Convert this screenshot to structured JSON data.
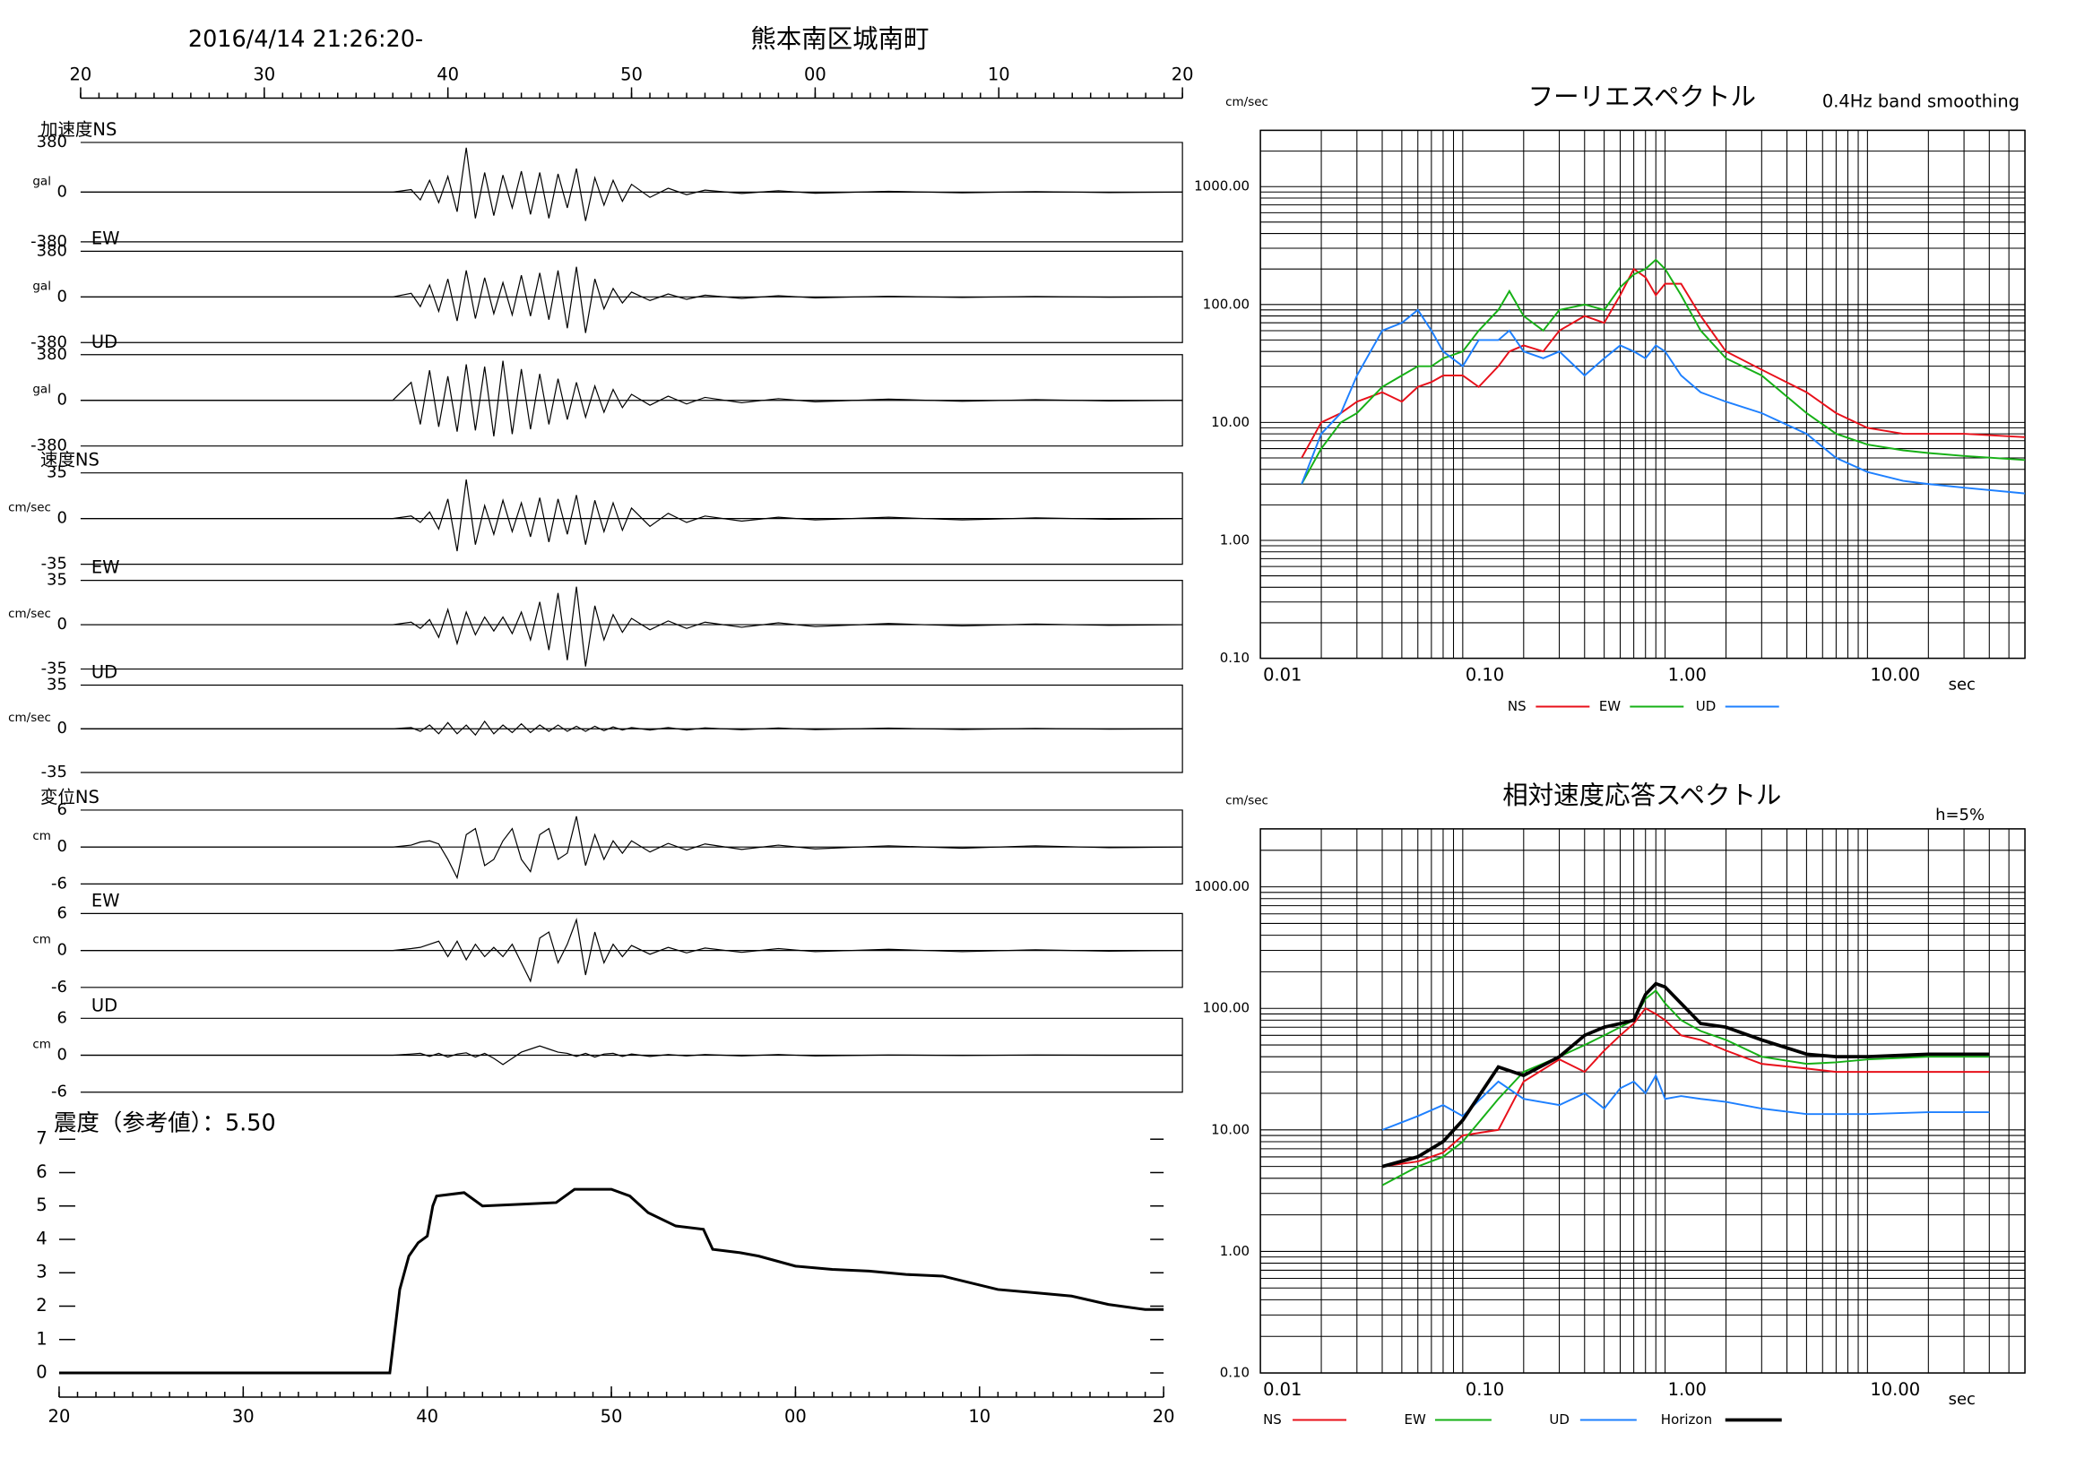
{
  "header": {
    "datetime": "2016/4/14 21:26:20-",
    "station": "熊本南区城南町"
  },
  "chart_data": [
    {
      "type": "waveform",
      "xlim": [
        0,
        60
      ],
      "xticks": [
        {
          "value": 0,
          "label": "20"
        },
        {
          "value": 10,
          "label": "30"
        },
        {
          "value": 20,
          "label": "40"
        },
        {
          "value": 30,
          "label": "50"
        },
        {
          "value": 40,
          "label": "00"
        },
        {
          "value": 50,
          "label": "10"
        },
        {
          "value": 60,
          "label": "20"
        }
      ],
      "x": [
        0,
        17,
        18,
        18.5,
        19,
        19.5,
        20,
        20.5,
        21,
        21.5,
        22,
        22.5,
        23,
        23.5,
        24,
        24.5,
        25,
        25.5,
        26,
        26.5,
        27,
        27.5,
        28,
        28.5,
        29,
        29.5,
        30,
        31,
        32,
        33,
        34,
        36,
        38,
        40,
        44,
        48,
        52,
        56,
        60
      ],
      "panels": [
        {
          "name": "加速度NS",
          "unit": "gal",
          "ylim": [
            -380,
            380
          ],
          "yticks": [
            380,
            0,
            -380
          ],
          "values": [
            0,
            0,
            20,
            -60,
            90,
            -80,
            120,
            -150,
            340,
            -200,
            150,
            -180,
            130,
            -120,
            160,
            -170,
            150,
            -200,
            140,
            -120,
            180,
            -220,
            110,
            -100,
            90,
            -70,
            60,
            -40,
            30,
            -20,
            15,
            -10,
            10,
            -8,
            6,
            -5,
            4,
            -3,
            0
          ]
        },
        {
          "name": "EW",
          "unit": "gal",
          "ylim": [
            -380,
            380
          ],
          "yticks": [
            380,
            0,
            -380
          ],
          "values": [
            0,
            0,
            30,
            -80,
            100,
            -120,
            150,
            -200,
            220,
            -180,
            160,
            -140,
            120,
            -150,
            180,
            -160,
            200,
            -190,
            220,
            -260,
            250,
            -300,
            150,
            -100,
            70,
            -50,
            40,
            -30,
            25,
            -20,
            15,
            -12,
            10,
            -8,
            6,
            -5,
            3,
            -2,
            0
          ]
        },
        {
          "name": "UD",
          "unit": "gal",
          "ylim": [
            -380,
            380
          ],
          "yticks": [
            380,
            0,
            -380
          ],
          "values": [
            0,
            0,
            150,
            -200,
            250,
            -220,
            200,
            -260,
            300,
            -250,
            280,
            -300,
            330,
            -280,
            260,
            -240,
            220,
            -200,
            180,
            -160,
            150,
            -140,
            120,
            -100,
            90,
            -60,
            50,
            -40,
            35,
            -30,
            25,
            -20,
            15,
            -12,
            10,
            -8,
            6,
            -4,
            0
          ]
        },
        {
          "name": "速度NS",
          "unit": "cm/sec",
          "ylim": [
            -35,
            35
          ],
          "yticks": [
            35,
            0,
            -35
          ],
          "values": [
            0,
            0,
            2,
            -3,
            5,
            -8,
            15,
            -25,
            30,
            -20,
            10,
            -12,
            14,
            -10,
            12,
            -14,
            16,
            -18,
            15,
            -12,
            18,
            -20,
            14,
            -10,
            12,
            -9,
            8,
            -6,
            4,
            -3,
            2,
            -2,
            1,
            -1,
            1,
            -1,
            0.5,
            -0.5,
            0
          ]
        },
        {
          "name": "EW",
          "unit": "cm/sec",
          "ylim": [
            -35,
            35
          ],
          "yticks": [
            35,
            0,
            -35
          ],
          "values": [
            0,
            0,
            2,
            -3,
            4,
            -10,
            12,
            -15,
            10,
            -8,
            6,
            -5,
            6,
            -7,
            10,
            -12,
            18,
            -20,
            25,
            -28,
            30,
            -33,
            15,
            -12,
            8,
            -6,
            5,
            -4,
            3,
            -3,
            2,
            -2,
            1.5,
            -1.5,
            1,
            -1,
            0.5,
            -0.5,
            0
          ]
        },
        {
          "name": "UD",
          "unit": "cm/sec",
          "ylim": [
            -35,
            35
          ],
          "yticks": [
            35,
            0,
            -35
          ],
          "values": [
            0,
            0,
            1,
            -2,
            3,
            -4,
            5,
            -4,
            3,
            -5,
            6,
            -4,
            3,
            -3,
            4,
            -3,
            3,
            -2,
            3,
            -2,
            2,
            -2,
            2,
            -1.5,
            1.5,
            -1,
            1,
            -1,
            1,
            -1,
            0.8,
            -0.8,
            0.6,
            -0.6,
            0.5,
            -0.5,
            0.3,
            -0.3,
            0
          ]
        },
        {
          "name": "変位NS",
          "unit": "cm",
          "ylim": [
            -6,
            6
          ],
          "yticks": [
            6,
            0,
            -6
          ],
          "values": [
            0,
            0,
            0.3,
            0.8,
            1,
            0.5,
            -2,
            -5,
            2,
            3,
            -3,
            -2,
            1,
            3,
            -2,
            -4,
            2,
            3,
            -2,
            -1,
            5,
            -3,
            2,
            -2,
            1,
            -1,
            1,
            -0.8,
            0.6,
            -0.5,
            0.5,
            -0.4,
            0.3,
            -0.3,
            0.2,
            -0.2,
            0.2,
            -0.1,
            0
          ]
        },
        {
          "name": "EW",
          "unit": "cm",
          "ylim": [
            -6,
            6
          ],
          "yticks": [
            6,
            0,
            -6
          ],
          "values": [
            0,
            0,
            0.3,
            0.5,
            1,
            1.5,
            -1,
            1.5,
            -1.5,
            1,
            -1,
            0.5,
            -1,
            1,
            -2,
            -5,
            2,
            3,
            -2,
            1,
            5,
            -4,
            3,
            -2,
            1,
            -1,
            0.8,
            -0.6,
            0.5,
            -0.4,
            0.4,
            -0.3,
            0.3,
            -0.2,
            0.2,
            -0.2,
            0.1,
            -0.1,
            0
          ]
        },
        {
          "name": "UD",
          "unit": "cm",
          "ylim": [
            -6,
            6
          ],
          "yticks": [
            6,
            0,
            -6
          ],
          "values": [
            0,
            0,
            0.2,
            0.3,
            -0.2,
            0.3,
            -0.3,
            0.2,
            0.4,
            -0.3,
            0.3,
            -0.5,
            -1.5,
            -0.5,
            0.5,
            1,
            1.5,
            1,
            0.5,
            0.3,
            -0.2,
            0.3,
            -0.3,
            0.2,
            0.3,
            -0.2,
            0.2,
            -0.2,
            0.1,
            -0.1,
            0.1,
            -0.1,
            0.1,
            -0.1,
            0.05,
            -0.05,
            0.05,
            0,
            0
          ]
        }
      ]
    },
    {
      "type": "line",
      "title": "震度（参考値）：5.50",
      "color": "#000000",
      "xlim": [
        0,
        60
      ],
      "xticks": [
        {
          "value": 0,
          "label": "20"
        },
        {
          "value": 10,
          "label": "30"
        },
        {
          "value": 20,
          "label": "40"
        },
        {
          "value": 30,
          "label": "50"
        },
        {
          "value": 40,
          "label": "00"
        },
        {
          "value": 50,
          "label": "10"
        },
        {
          "value": 60,
          "label": "20"
        }
      ],
      "ylim": [
        0,
        7
      ],
      "yticks": [
        0,
        1,
        2,
        3,
        4,
        5,
        6,
        7
      ],
      "x": [
        0,
        17.96,
        18.5,
        19,
        19.5,
        20,
        20.3,
        20.5,
        22,
        23,
        25,
        27,
        28,
        30,
        31,
        32,
        33.5,
        35,
        35.5,
        37,
        38,
        40,
        42,
        44,
        46,
        48,
        49.5,
        51,
        53,
        55,
        57,
        59,
        60
      ],
      "values": [
        0,
        0,
        2.5,
        3.5,
        3.9,
        4.1,
        5.0,
        5.3,
        5.4,
        5.0,
        5.05,
        5.1,
        5.5,
        5.5,
        5.3,
        4.8,
        4.4,
        4.3,
        3.7,
        3.6,
        3.5,
        3.2,
        3.1,
        3.05,
        2.95,
        2.9,
        2.7,
        2.5,
        2.4,
        2.3,
        2.05,
        1.9,
        1.9
      ]
    },
    {
      "type": "line",
      "title": "フーリエスペクトル",
      "subtitle": "0.4Hz band smoothing",
      "y_label": "cm/sec",
      "x_label": "sec",
      "log_x": true,
      "log_y": true,
      "grid": true,
      "xlim": [
        0.01,
        60
      ],
      "ylim": [
        0.1,
        3000
      ],
      "xticks": [
        {
          "value": 0.01,
          "label": "0.01"
        },
        {
          "value": 0.1,
          "label": "0.10"
        },
        {
          "value": 1,
          "label": "1.00"
        },
        {
          "value": 10,
          "label": "10.00"
        }
      ],
      "yticks": [
        {
          "value": 0.1,
          "label": "0.10"
        },
        {
          "value": 1,
          "label": "1.00"
        },
        {
          "value": 10,
          "label": "10.00"
        },
        {
          "value": 100,
          "label": "100.00"
        },
        {
          "value": 1000,
          "label": "1000.00"
        }
      ],
      "x": [
        0.016,
        0.02,
        0.025,
        0.03,
        0.04,
        0.05,
        0.06,
        0.07,
        0.08,
        0.1,
        0.12,
        0.15,
        0.17,
        0.2,
        0.25,
        0.3,
        0.4,
        0.5,
        0.6,
        0.7,
        0.8,
        0.9,
        1.0,
        1.2,
        1.5,
        2,
        3,
        5,
        7,
        10,
        15,
        20,
        30,
        60
      ],
      "series": [
        {
          "name": "NS",
          "color": "#e8101a",
          "values": [
            5,
            10,
            12,
            15,
            18,
            15,
            20,
            22,
            25,
            25,
            20,
            30,
            40,
            45,
            40,
            60,
            80,
            70,
            120,
            200,
            170,
            120,
            150,
            150,
            80,
            40,
            28,
            18,
            12,
            9,
            8,
            8,
            8,
            7.5
          ]
        },
        {
          "name": "EW",
          "color": "#16b016",
          "values": [
            3,
            6,
            10,
            12,
            20,
            25,
            30,
            30,
            35,
            40,
            60,
            90,
            130,
            80,
            60,
            90,
            100,
            90,
            140,
            180,
            200,
            240,
            200,
            120,
            60,
            35,
            25,
            12,
            8,
            6.5,
            5.8,
            5.5,
            5.2,
            4.8
          ]
        },
        {
          "name": "UD",
          "color": "#1e80ff",
          "values": [
            3,
            8,
            12,
            25,
            60,
            70,
            90,
            60,
            40,
            30,
            50,
            50,
            60,
            40,
            35,
            40,
            25,
            35,
            45,
            40,
            35,
            45,
            40,
            25,
            18,
            15,
            12,
            8,
            5,
            3.8,
            3.2,
            3,
            2.8,
            2.5
          ]
        }
      ]
    },
    {
      "type": "line",
      "title": "相対速度応答スペクトル",
      "annotation": "h=5%",
      "y_label": "cm/sec",
      "x_label": "sec",
      "log_x": true,
      "log_y": true,
      "grid": true,
      "xlim": [
        0.01,
        60
      ],
      "ylim": [
        0.1,
        3000
      ],
      "xticks": [
        {
          "value": 0.01,
          "label": "0.01"
        },
        {
          "value": 0.1,
          "label": "0.10"
        },
        {
          "value": 1,
          "label": "1.00"
        },
        {
          "value": 10,
          "label": "10.00"
        }
      ],
      "yticks": [
        {
          "value": 0.1,
          "label": "0.10"
        },
        {
          "value": 1,
          "label": "1.00"
        },
        {
          "value": 10,
          "label": "10.00"
        },
        {
          "value": 100,
          "label": "100.00"
        },
        {
          "value": 1000,
          "label": "1000.00"
        }
      ],
      "x": [
        0.04,
        0.06,
        0.08,
        0.1,
        0.15,
        0.2,
        0.3,
        0.4,
        0.5,
        0.6,
        0.7,
        0.8,
        0.9,
        1.0,
        1.2,
        1.5,
        2,
        3,
        5,
        7,
        10,
        20,
        40
      ],
      "series": [
        {
          "name": "NS",
          "color": "#e8101a",
          "values": [
            5,
            5.5,
            6.5,
            9,
            10,
            25,
            38,
            30,
            45,
            60,
            75,
            100,
            90,
            80,
            60,
            55,
            45,
            35,
            32,
            30,
            30,
            30,
            30
          ]
        },
        {
          "name": "EW",
          "color": "#16b016",
          "values": [
            3.5,
            5,
            6,
            8,
            18,
            30,
            40,
            50,
            60,
            70,
            80,
            120,
            140,
            110,
            80,
            65,
            55,
            40,
            35,
            36,
            38,
            40,
            40
          ]
        },
        {
          "name": "UD",
          "color": "#1e80ff",
          "values": [
            10,
            13,
            16,
            13,
            25,
            18,
            16,
            20,
            15,
            22,
            25,
            20,
            28,
            18,
            19,
            18,
            17,
            15,
            13.5,
            13.5,
            13.5,
            14,
            14
          ]
        },
        {
          "name": "Horizon",
          "color": "#000000",
          "values": [
            5,
            6,
            8,
            12,
            33,
            28,
            40,
            60,
            70,
            75,
            80,
            130,
            160,
            150,
            110,
            75,
            70,
            55,
            42,
            40,
            40,
            42,
            42
          ]
        }
      ]
    }
  ]
}
